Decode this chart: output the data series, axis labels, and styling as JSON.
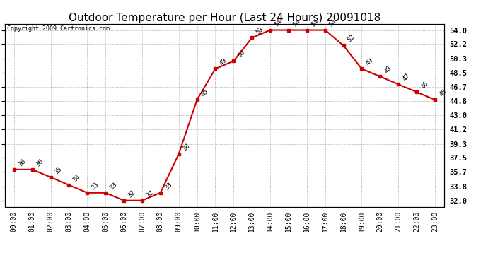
{
  "title": "Outdoor Temperature per Hour (Last 24 Hours) 20091018",
  "copyright": "Copyright 2009 Cartronics.com",
  "hours": [
    0,
    1,
    2,
    3,
    4,
    5,
    6,
    7,
    8,
    9,
    10,
    11,
    12,
    13,
    14,
    15,
    16,
    17,
    18,
    19,
    20,
    21,
    22,
    23
  ],
  "temps": [
    36,
    36,
    35,
    34,
    33,
    33,
    32,
    32,
    33,
    38,
    45,
    49,
    50,
    53,
    54,
    54,
    54,
    54,
    52,
    49,
    48,
    47,
    46,
    45
  ],
  "xlabels": [
    "00:00",
    "01:00",
    "02:00",
    "03:00",
    "04:00",
    "05:00",
    "06:00",
    "07:00",
    "08:00",
    "09:00",
    "10:00",
    "11:00",
    "12:00",
    "13:00",
    "14:00",
    "15:00",
    "16:00",
    "17:00",
    "18:00",
    "19:00",
    "20:00",
    "21:00",
    "22:00",
    "23:00"
  ],
  "yticks": [
    32.0,
    33.8,
    35.7,
    37.5,
    39.3,
    41.2,
    43.0,
    44.8,
    46.7,
    48.5,
    50.3,
    52.2,
    54.0
  ],
  "ymin": 31.2,
  "ymax": 54.8,
  "line_color": "#cc0000",
  "marker_color": "#cc0000",
  "bg_color": "#ffffff",
  "grid_color": "#bbbbbb",
  "title_fontsize": 11,
  "tick_fontsize": 7,
  "data_label_fontsize": 6.5,
  "copyright_fontsize": 6
}
